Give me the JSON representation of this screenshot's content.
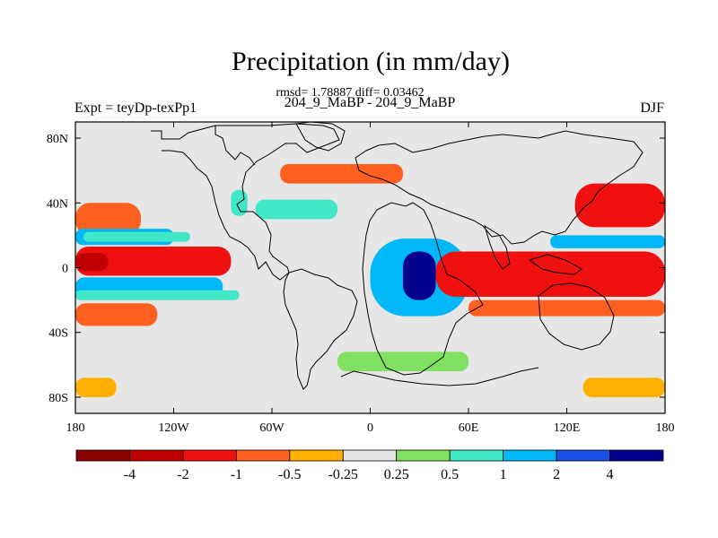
{
  "title": "Precipitation (in mm/day)",
  "stats": "rmsd= 1.78887 diff= 0.03462",
  "subtitle": "204_9_MaBP - 204_9_MaBP",
  "left_label": "Expt = teyDp-texPp1",
  "right_label": "DJF",
  "x_axis": {
    "range": [
      -180,
      180
    ],
    "ticks": [
      {
        "value": -180,
        "label": "180"
      },
      {
        "value": -120,
        "label": "120W"
      },
      {
        "value": -60,
        "label": "60W"
      },
      {
        "value": 0,
        "label": "0"
      },
      {
        "value": 60,
        "label": "60E"
      },
      {
        "value": 120,
        "label": "120E"
      },
      {
        "value": 180,
        "label": "180"
      }
    ]
  },
  "y_axis": {
    "range": [
      -90,
      90
    ],
    "ticks": [
      {
        "value": 80,
        "label": "80N"
      },
      {
        "value": 40,
        "label": "40N"
      },
      {
        "value": 0,
        "label": "0"
      },
      {
        "value": -40,
        "label": "40S"
      },
      {
        "value": -80,
        "label": "80S"
      }
    ]
  },
  "colorbar": {
    "colors": [
      "#8b0000",
      "#c00000",
      "#f01010",
      "#ff6020",
      "#ffb000",
      "#e6e6e6",
      "#80e060",
      "#40e8c8",
      "#00b8f8",
      "#1850e8",
      "#00008c"
    ],
    "labels": [
      "-4",
      "-2",
      "-1",
      "-0.5",
      "-0.25",
      "0.25",
      "0.5",
      "1",
      "2",
      "4"
    ]
  },
  "chart_data": {
    "type": "heatmap",
    "title": "Precipitation (in mm/day)",
    "units": "mm/day",
    "levels": [
      -4,
      -2,
      -1,
      -0.5,
      -0.25,
      0.25,
      0.5,
      1,
      2,
      4
    ],
    "xlim": [
      -180,
      180
    ],
    "ylim": [
      -90,
      90
    ],
    "background_color": "#e6e6e6",
    "fields": [
      {
        "name": "w-pacific-north-band",
        "lon": [
          -180,
          -140
        ],
        "lat": [
          40,
          20
        ],
        "value": -0.75
      },
      {
        "name": "w-pacific-blue-band",
        "lon": [
          -180,
          -120
        ],
        "lat": [
          24,
          14
        ],
        "value": 1.5
      },
      {
        "name": "w-pacific-cyan-band",
        "lon": [
          -175,
          -110
        ],
        "lat": [
          22,
          16
        ],
        "value": 0.75
      },
      {
        "name": "w-pacific-red-band",
        "lon": [
          -180,
          -85
        ],
        "lat": [
          13,
          -5
        ],
        "value": -1.5
      },
      {
        "name": "w-pacific-darkred-core",
        "lon": [
          -180,
          -160
        ],
        "lat": [
          9,
          -2
        ],
        "value": -3
      },
      {
        "name": "s-pacific-blue-band",
        "lon": [
          -180,
          -90
        ],
        "lat": [
          -6,
          -18
        ],
        "value": 1.5
      },
      {
        "name": "s-pacific-cyan-band",
        "lon": [
          -180,
          -80
        ],
        "lat": [
          -14,
          -20
        ],
        "value": 0.75
      },
      {
        "name": "s-pacific-orange-band",
        "lon": [
          -180,
          -130
        ],
        "lat": [
          -22,
          -36
        ],
        "value": -0.75
      },
      {
        "name": "s-pacific-yellow-patch",
        "lon": [
          -180,
          -155
        ],
        "lat": [
          -68,
          -80
        ],
        "value": -0.35
      },
      {
        "name": "n-america-cyan-patch",
        "lon": [
          -85,
          -75
        ],
        "lat": [
          48,
          32
        ],
        "value": 0.75
      },
      {
        "name": "n-atlantic-cyan-band",
        "lon": [
          -70,
          -20
        ],
        "lat": [
          42,
          30
        ],
        "value": 0.75
      },
      {
        "name": "n-atlantic-orange-band",
        "lon": [
          -55,
          20
        ],
        "lat": [
          64,
          52
        ],
        "value": -0.75
      },
      {
        "name": "africa-blue-core",
        "lon": [
          0,
          60
        ],
        "lat": [
          18,
          -30
        ],
        "value": 1.5
      },
      {
        "name": "africa-darkblue-spots",
        "lon": [
          20,
          40
        ],
        "lat": [
          10,
          -20
        ],
        "value": 4.5
      },
      {
        "name": "indian-ocean-darkred-core",
        "lon": [
          45,
          140
        ],
        "lat": [
          0,
          -8
        ],
        "value": -3
      },
      {
        "name": "indian-ocean-red-band",
        "lon": [
          40,
          180
        ],
        "lat": [
          10,
          -18
        ],
        "value": -1.5
      },
      {
        "name": "w-pacific-nh-blue-band",
        "lon": [
          110,
          180
        ],
        "lat": [
          20,
          12
        ],
        "value": 1.5
      },
      {
        "name": "nw-pacific-red-blob",
        "lon": [
          125,
          180
        ],
        "lat": [
          52,
          25
        ],
        "value": -1.5
      },
      {
        "name": "s-indian-orange-band",
        "lon": [
          60,
          180
        ],
        "lat": [
          -20,
          -30
        ],
        "value": -0.75
      },
      {
        "name": "s-ocean-yellow-patch",
        "lon": [
          130,
          180
        ],
        "lat": [
          -68,
          -80
        ],
        "value": -0.35
      },
      {
        "name": "s-atlantic-green-band",
        "lon": [
          -20,
          60
        ],
        "lat": [
          -52,
          -64
        ],
        "value": 0.35
      }
    ]
  }
}
